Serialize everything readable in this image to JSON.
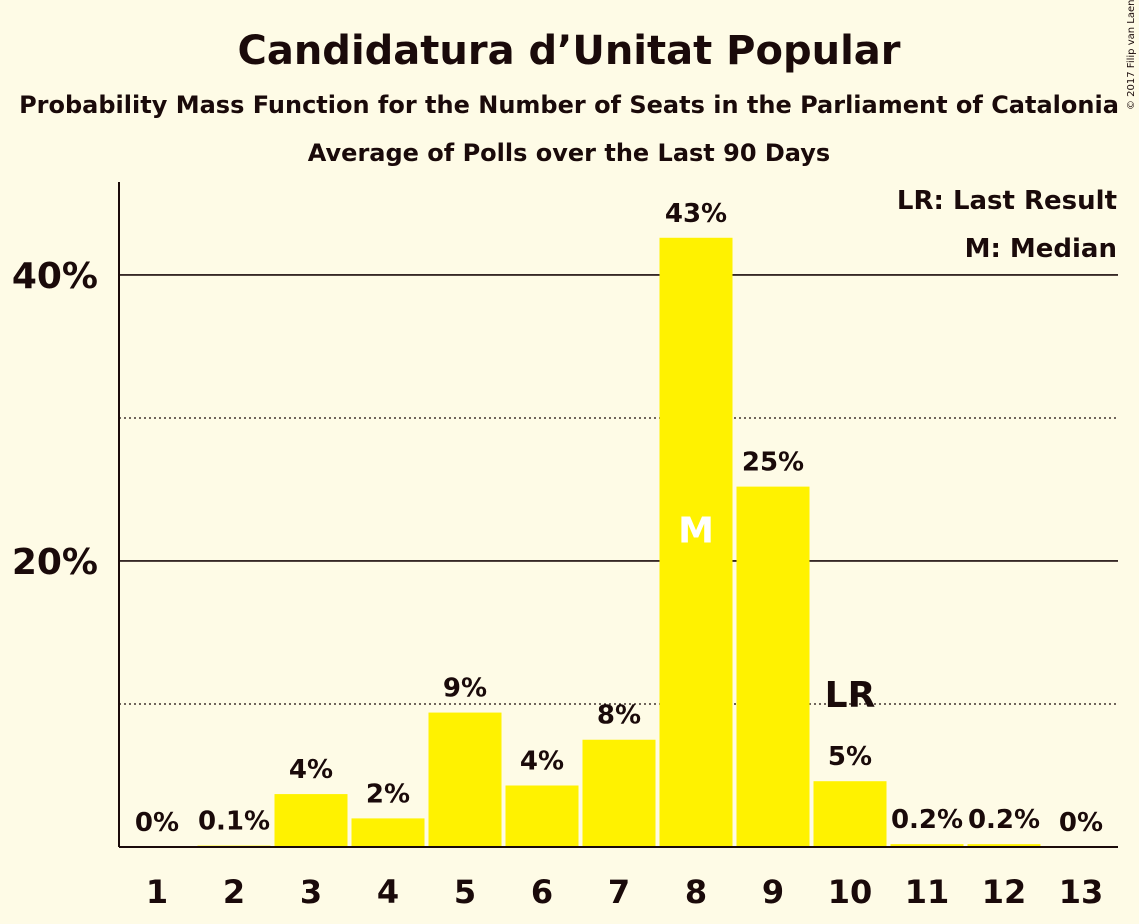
{
  "chart_data": {
    "type": "bar",
    "title": "Candidatura d’Unitat Popular",
    "subtitle": "Probability Mass Function for the Number of Seats in the Parliament of Catalonia",
    "subtitle2": "Average of Polls over the Last 90 Days",
    "categories": [
      "1",
      "2",
      "3",
      "4",
      "5",
      "6",
      "7",
      "8",
      "9",
      "10",
      "11",
      "12",
      "13"
    ],
    "values": [
      0,
      0.1,
      3.7,
      2.0,
      9.4,
      4.3,
      7.5,
      42.6,
      25.2,
      4.6,
      0.2,
      0.2,
      0
    ],
    "labels": [
      "0%",
      "0.1%",
      "4%",
      "2%",
      "9%",
      "4%",
      "8%",
      "43%",
      "25%",
      "5%",
      "0.2%",
      "0.2%",
      "0%"
    ],
    "ylim": [
      0,
      46.5
    ],
    "yticks": [
      {
        "value": 20,
        "label": "20%"
      },
      {
        "value": 40,
        "label": "40%"
      }
    ],
    "minor_gridlines": [
      10,
      30
    ],
    "median_category": "8",
    "median_marker": "M",
    "last_result_category": "10",
    "last_result_marker": "LR",
    "legend": [
      "LR: Last Result",
      "M: Median"
    ],
    "legend_position": "top-right",
    "bar_color": "#fff200",
    "copyright": "© 2017 Filip van Laenen"
  }
}
